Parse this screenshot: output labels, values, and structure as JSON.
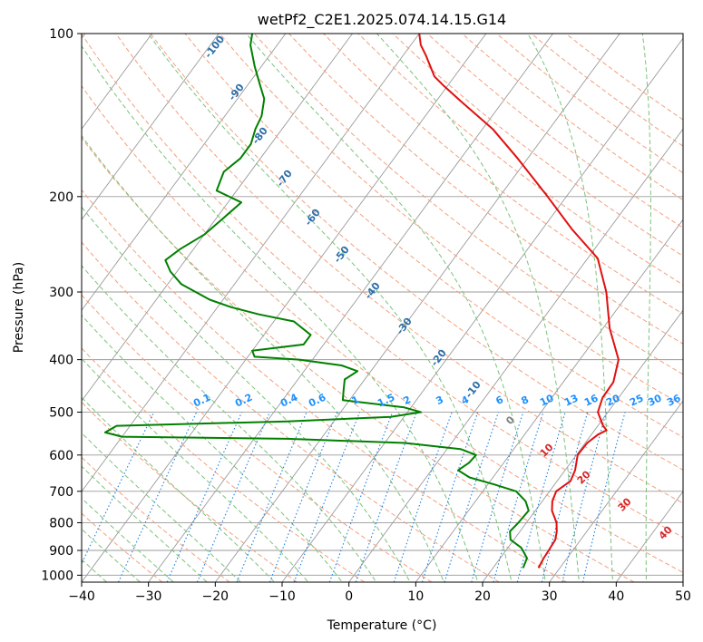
{
  "chart_data": {
    "type": "line",
    "title": "wetPf2_C2E1.2025.074.14.15.G14",
    "xlabel": "Temperature (°C)",
    "ylabel": "Pressure (hPa)",
    "xlim": [
      -40,
      50
    ],
    "ylim": [
      1030,
      100
    ],
    "y_scale": "log",
    "skew": true,
    "grid": true,
    "x_ticks": [
      -40,
      -30,
      -20,
      -10,
      0,
      10,
      20,
      30,
      40,
      50
    ],
    "x_tick_labels": [
      "−40",
      "−30",
      "−20",
      "−10",
      "0",
      "10",
      "20",
      "30",
      "40",
      "50"
    ],
    "y_ticks": [
      100,
      200,
      300,
      400,
      500,
      600,
      700,
      800,
      900,
      1000
    ],
    "y_tick_labels": [
      "100",
      "200",
      "300",
      "400",
      "500",
      "600",
      "700",
      "800",
      "900",
      "1000"
    ],
    "series": [
      {
        "color": "#e01010",
        "points": [
          [
            970,
            26.8
          ],
          [
            930,
            26.5
          ],
          [
            900,
            26.4
          ],
          [
            860,
            26.2
          ],
          [
            830,
            25.5
          ],
          [
            800,
            24.5
          ],
          [
            760,
            22.5
          ],
          [
            730,
            21.5
          ],
          [
            700,
            21
          ],
          [
            670,
            22
          ],
          [
            640,
            21.5
          ],
          [
            600,
            20.2
          ],
          [
            570,
            20.3
          ],
          [
            550,
            21
          ],
          [
            540,
            21.8
          ],
          [
            530,
            20.8
          ],
          [
            500,
            18.5
          ],
          [
            470,
            17.6
          ],
          [
            440,
            17.5
          ],
          [
            400,
            15.8
          ],
          [
            350,
            11
          ],
          [
            300,
            6.5
          ],
          [
            260,
            1.5
          ],
          [
            230,
            -5.5
          ],
          [
            200,
            -12.8
          ],
          [
            170,
            -21.5
          ],
          [
            150,
            -28.5
          ],
          [
            135,
            -35.5
          ],
          [
            125,
            -40.5
          ],
          [
            120,
            -43
          ],
          [
            110,
            -46.5
          ],
          [
            105,
            -48.5
          ],
          [
            100,
            -50
          ]
        ]
      },
      {
        "color": "#008000",
        "points": [
          [
            970,
            24.5
          ],
          [
            930,
            24
          ],
          [
            890,
            22
          ],
          [
            860,
            19.5
          ],
          [
            830,
            18.5
          ],
          [
            800,
            18.8
          ],
          [
            760,
            19
          ],
          [
            730,
            17.5
          ],
          [
            700,
            15
          ],
          [
            680,
            11
          ],
          [
            660,
            6.5
          ],
          [
            640,
            4
          ],
          [
            620,
            4.8
          ],
          [
            600,
            5
          ],
          [
            585,
            2
          ],
          [
            570,
            -7
          ],
          [
            560,
            -25
          ],
          [
            555,
            -50
          ],
          [
            545,
            -53
          ],
          [
            530,
            -52
          ],
          [
            520,
            -27
          ],
          [
            510,
            -12
          ],
          [
            500,
            -8
          ],
          [
            490,
            -11
          ],
          [
            475,
            -21
          ],
          [
            455,
            -22
          ],
          [
            435,
            -23
          ],
          [
            420,
            -22
          ],
          [
            410,
            -25
          ],
          [
            400,
            -32
          ],
          [
            395,
            -39
          ],
          [
            385,
            -40
          ],
          [
            375,
            -33
          ],
          [
            360,
            -33
          ],
          [
            340,
            -37
          ],
          [
            330,
            -43
          ],
          [
            320,
            -48
          ],
          [
            310,
            -52
          ],
          [
            290,
            -58
          ],
          [
            275,
            -61
          ],
          [
            262,
            -63
          ],
          [
            250,
            -62
          ],
          [
            235,
            -60
          ],
          [
            220,
            -59
          ],
          [
            205,
            -58
          ],
          [
            195,
            -63
          ],
          [
            180,
            -64
          ],
          [
            170,
            -63
          ],
          [
            160,
            -63
          ],
          [
            150,
            -64
          ],
          [
            142,
            -64.5
          ],
          [
            132,
            -66
          ],
          [
            125,
            -68
          ],
          [
            115,
            -71
          ],
          [
            105,
            -74
          ],
          [
            100,
            -75
          ]
        ]
      }
    ],
    "dry_adiabat_labels": [
      "-100",
      "-90",
      "-80",
      "-70",
      "-60",
      "-50",
      "-40",
      "-30",
      "-20",
      "-10"
    ],
    "moist_adiabat_labels": [
      "0",
      "10",
      "20",
      "30",
      "40"
    ],
    "mixing_ratio_labels": [
      "0.1",
      "0.2",
      "0.4",
      "0.6",
      "1",
      "1.5",
      "2",
      "3",
      "4",
      "6",
      "8",
      "10",
      "13",
      "16",
      "20",
      "25",
      "30",
      "36"
    ],
    "colors": {
      "isotherm": "#9a9a9a",
      "dry_adiabat": "#f2a07e",
      "moist_adiabat": "#7cc27c",
      "mixing_ratio": "#1e80e0",
      "dry_adiabat_text": "#2c6ea8",
      "moist_adiabat_text": "#d62728",
      "zero_label_text": "#808080",
      "mixing_ratio_text": "#1e90ff"
    }
  }
}
